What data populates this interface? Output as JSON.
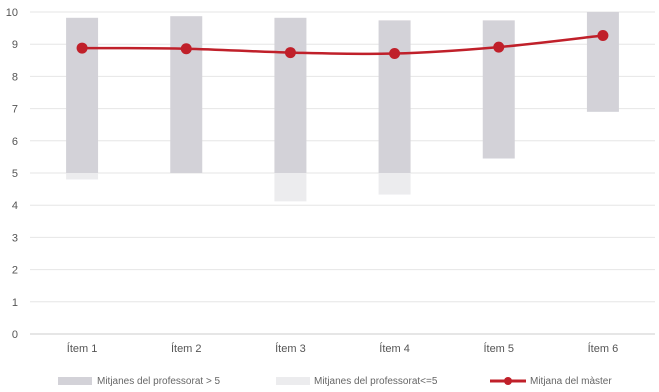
{
  "chart_data": {
    "type": "bar",
    "title": "",
    "xlabel": "",
    "ylabel": "",
    "ylim": [
      0,
      10
    ],
    "yticks": [
      0,
      1,
      2,
      3,
      4,
      5,
      6,
      7,
      8,
      9,
      10
    ],
    "grid": true,
    "legend_position": "bottom",
    "categories": [
      "Ítem 1",
      "Ítem 2",
      "Ítem 3",
      "Ítem 4",
      "Ítem 5",
      "Ítem 6"
    ],
    "series": [
      {
        "name": "Mitjanes del professorat > 5",
        "kind": "floating-bar",
        "color": "#d3d2d8",
        "ranges": [
          [
            5.0,
            9.82
          ],
          [
            5.0,
            9.87
          ],
          [
            5.0,
            9.82
          ],
          [
            5.0,
            9.74
          ],
          [
            5.45,
            9.74
          ],
          [
            6.9,
            10.0
          ]
        ]
      },
      {
        "name": "Mitjanes del professorat<=5",
        "kind": "floating-bar",
        "color": "#ececee",
        "ranges": [
          [
            4.8,
            5.0
          ],
          null,
          [
            4.12,
            5.0
          ],
          [
            4.33,
            5.0
          ],
          null,
          null
        ]
      },
      {
        "name": "Mitjana del màster",
        "kind": "line",
        "color": "#c0202a",
        "values": [
          8.88,
          8.86,
          8.74,
          8.71,
          8.91,
          9.27
        ]
      }
    ]
  }
}
